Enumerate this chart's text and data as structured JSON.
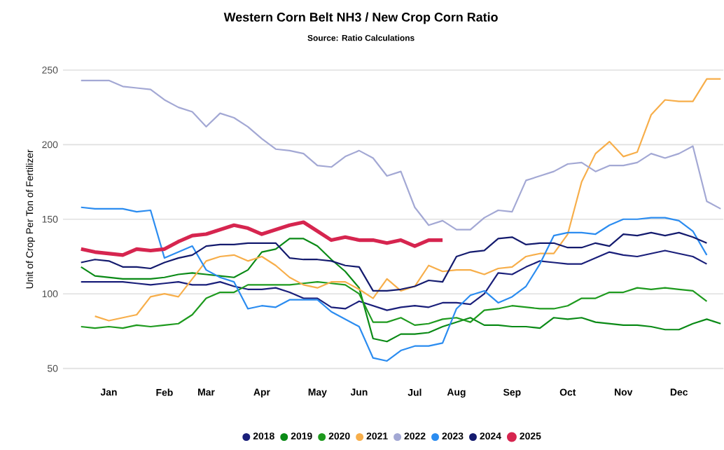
{
  "chart_data": {
    "type": "line",
    "title": "Western Corn Belt NH3 / New Crop Corn Ratio",
    "subtitle": "Source: Ratio Calculations",
    "ylabel": "Unit of Crop Per Ton of Fertilizer",
    "categories": [
      null,
      null,
      "Jan",
      null,
      null,
      null,
      "Feb",
      null,
      null,
      "Mar",
      null,
      null,
      null,
      "Apr",
      null,
      null,
      null,
      "May",
      null,
      null,
      "Jun",
      null,
      null,
      null,
      "Jul",
      null,
      null,
      "Aug",
      null,
      null,
      null,
      "Sep",
      null,
      null,
      null,
      "Oct",
      null,
      null,
      null,
      "Nov",
      null,
      null,
      null,
      "Dec",
      null,
      null,
      null
    ],
    "ylim": [
      50,
      250
    ],
    "yticks": [
      50,
      100,
      150,
      200,
      250
    ],
    "grid": "y",
    "legend": "bottom",
    "marker": "none",
    "line_style": "solid",
    "series": [
      {
        "name": "2018",
        "color": "#1a1f7a",
        "values": [
          108,
          108,
          108,
          108,
          107,
          106,
          107,
          108,
          106,
          106,
          108,
          105,
          103,
          103,
          104,
          101,
          97,
          97,
          91,
          90,
          95,
          92,
          89,
          91,
          92,
          91,
          94,
          94,
          93,
          100,
          114,
          113,
          118,
          122,
          121,
          120,
          120,
          124,
          128,
          126,
          125,
          127,
          129,
          127,
          125,
          120,
          null
        ]
      },
      {
        "name": "2019",
        "color": "#0a8a16",
        "values": [
          118,
          112,
          111,
          110,
          110,
          110,
          111,
          113,
          114,
          113,
          112,
          111,
          116,
          128,
          130,
          137,
          137,
          132,
          123,
          115,
          104,
          70,
          68,
          73,
          73,
          74,
          78,
          81,
          84,
          79,
          79,
          78,
          78,
          77,
          84,
          83,
          84,
          81,
          80,
          79,
          79,
          78,
          76,
          76,
          80,
          83,
          80
        ]
      },
      {
        "name": "2020",
        "color": "#1e9a1e",
        "values": [
          78,
          77,
          78,
          77,
          79,
          78,
          79,
          80,
          86,
          97,
          101,
          101,
          106,
          106,
          106,
          106,
          107,
          108,
          107,
          106,
          100,
          81,
          81,
          84,
          79,
          80,
          83,
          84,
          81,
          89,
          90,
          92,
          91,
          90,
          90,
          92,
          97,
          97,
          101,
          101,
          104,
          103,
          104,
          103,
          102,
          95,
          null
        ]
      },
      {
        "name": "2021",
        "color": "#f7ae4a",
        "values": [
          null,
          85,
          82,
          84,
          86,
          98,
          100,
          98,
          110,
          122,
          125,
          126,
          122,
          125,
          119,
          111,
          106,
          104,
          108,
          108,
          103,
          97,
          110,
          102,
          105,
          119,
          115,
          116,
          116,
          113,
          117,
          118,
          125,
          127,
          127,
          140,
          175,
          194,
          202,
          192,
          195,
          220,
          230,
          229,
          229,
          244,
          244
        ]
      },
      {
        "name": "2022",
        "color": "#a3a8d4",
        "values": [
          243,
          243,
          243,
          239,
          238,
          237,
          230,
          225,
          222,
          212,
          221,
          218,
          212,
          204,
          197,
          196,
          194,
          186,
          185,
          192,
          196,
          191,
          179,
          182,
          158,
          146,
          149,
          143,
          143,
          151,
          156,
          155,
          176,
          179,
          182,
          187,
          188,
          182,
          186,
          186,
          188,
          194,
          191,
          194,
          199,
          162,
          157
        ]
      },
      {
        "name": "2023",
        "color": "#2b8cf0",
        "values": [
          158,
          157,
          157,
          157,
          155,
          156,
          124,
          128,
          132,
          116,
          111,
          108,
          90,
          92,
          91,
          96,
          96,
          96,
          88,
          83,
          78,
          57,
          55,
          62,
          65,
          65,
          67,
          90,
          99,
          102,
          94,
          98,
          105,
          120,
          139,
          141,
          141,
          140,
          146,
          150,
          150,
          151,
          151,
          149,
          142,
          126,
          null
        ]
      },
      {
        "name": "2024",
        "color": "#141b6e",
        "values": [
          121,
          123,
          122,
          118,
          118,
          117,
          121,
          124,
          126,
          132,
          133,
          133,
          134,
          134,
          134,
          124,
          123,
          123,
          122,
          119,
          118,
          102,
          102,
          103,
          105,
          109,
          108,
          125,
          128,
          129,
          137,
          138,
          133,
          134,
          134,
          131,
          131,
          134,
          132,
          140,
          139,
          141,
          139,
          141,
          138,
          134,
          null
        ]
      },
      {
        "name": "2025",
        "color": "#d6254f",
        "values": [
          130,
          128,
          127,
          126,
          130,
          129,
          130,
          135,
          139,
          140,
          143,
          146,
          144,
          140,
          143,
          146,
          148,
          142,
          136,
          138,
          136,
          136,
          134,
          136,
          132,
          136,
          136,
          null,
          null,
          null,
          null,
          null,
          null,
          null,
          null,
          null,
          null,
          null,
          null,
          null,
          null,
          null,
          null,
          null,
          null,
          null,
          null
        ]
      }
    ]
  }
}
